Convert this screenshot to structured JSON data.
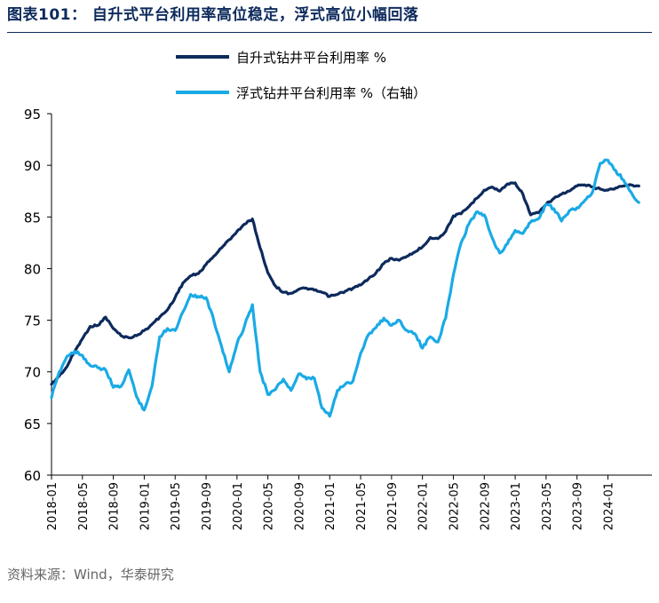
{
  "figure": {
    "title": "图表101：  自升式平台利用率高位稳定，浮式高位小幅回落",
    "source": "资料来源：Wind，华泰研究"
  },
  "chart_data": {
    "type": "line",
    "title": "",
    "xlabel": "",
    "ylabel": "",
    "ylim": [
      60,
      95
    ],
    "yticks": [
      60,
      65,
      70,
      75,
      80,
      85,
      90,
      95
    ],
    "xlim": [
      "2018-01",
      "2024-06"
    ],
    "xticks": [
      "2018-01",
      "2018-05",
      "2018-09",
      "2019-01",
      "2019-05",
      "2019-09",
      "2020-01",
      "2020-05",
      "2020-09",
      "2021-01",
      "2021-05",
      "2021-09",
      "2022-01",
      "2022-05",
      "2022-09",
      "2023-01",
      "2023-05",
      "2023-09",
      "2024-01"
    ],
    "grid": false,
    "legend_placement": "top-center",
    "series": [
      {
        "name": "自升式钻井平台利用率 %",
        "color": "#0d2a5c",
        "points": [
          [
            "2018-01",
            68.8
          ],
          [
            "2018-02",
            69.6
          ],
          [
            "2018-03",
            70.5
          ],
          [
            "2018-04",
            72.0
          ],
          [
            "2018-05",
            73.2
          ],
          [
            "2018-06",
            74.4
          ],
          [
            "2018-07",
            74.5
          ],
          [
            "2018-08",
            75.3
          ],
          [
            "2018-09",
            74.2
          ],
          [
            "2018-10",
            73.5
          ],
          [
            "2018-11",
            73.3
          ],
          [
            "2018-12",
            73.5
          ],
          [
            "2019-01",
            74.0
          ],
          [
            "2019-02",
            74.6
          ],
          [
            "2019-03",
            75.3
          ],
          [
            "2019-04",
            76.0
          ],
          [
            "2019-05",
            77.2
          ],
          [
            "2019-06",
            78.6
          ],
          [
            "2019-07",
            79.3
          ],
          [
            "2019-08",
            79.5
          ],
          [
            "2019-09",
            80.4
          ],
          [
            "2019-10",
            81.2
          ],
          [
            "2019-11",
            82.0
          ],
          [
            "2019-12",
            82.8
          ],
          [
            "2020-01",
            83.6
          ],
          [
            "2020-02",
            84.3
          ],
          [
            "2020-03",
            84.8
          ],
          [
            "2020-04",
            82.0
          ],
          [
            "2020-05",
            79.6
          ],
          [
            "2020-06",
            78.3
          ],
          [
            "2020-07",
            77.7
          ],
          [
            "2020-08",
            77.6
          ],
          [
            "2020-09",
            78.0
          ],
          [
            "2020-10",
            78.1
          ],
          [
            "2020-11",
            77.9
          ],
          [
            "2020-12",
            77.7
          ],
          [
            "2021-01",
            77.3
          ],
          [
            "2021-02",
            77.5
          ],
          [
            "2021-03",
            77.8
          ],
          [
            "2021-04",
            78.1
          ],
          [
            "2021-05",
            78.4
          ],
          [
            "2021-06",
            79.0
          ],
          [
            "2021-07",
            79.6
          ],
          [
            "2021-08",
            80.5
          ],
          [
            "2021-09",
            81.0
          ],
          [
            "2021-10",
            80.8
          ],
          [
            "2021-11",
            81.2
          ],
          [
            "2021-12",
            81.6
          ],
          [
            "2022-01",
            82.1
          ],
          [
            "2022-02",
            83.0
          ],
          [
            "2022-03",
            82.9
          ],
          [
            "2022-04",
            83.6
          ],
          [
            "2022-05",
            85.1
          ],
          [
            "2022-06",
            85.3
          ],
          [
            "2022-07",
            86.0
          ],
          [
            "2022-08",
            86.8
          ],
          [
            "2022-09",
            87.6
          ],
          [
            "2022-10",
            87.9
          ],
          [
            "2022-11",
            87.5
          ],
          [
            "2022-12",
            88.2
          ],
          [
            "2023-01",
            88.3
          ],
          [
            "2023-02",
            87.2
          ],
          [
            "2023-03",
            85.2
          ],
          [
            "2023-04",
            85.4
          ],
          [
            "2023-05",
            86.2
          ],
          [
            "2023-06",
            86.8
          ],
          [
            "2023-07",
            87.2
          ],
          [
            "2023-08",
            87.5
          ],
          [
            "2023-09",
            88.0
          ],
          [
            "2023-10",
            88.1
          ],
          [
            "2023-11",
            87.9
          ],
          [
            "2023-12",
            87.7
          ],
          [
            "2024-01",
            87.6
          ],
          [
            "2024-02",
            87.8
          ],
          [
            "2024-03",
            88.0
          ],
          [
            "2024-04",
            88.1
          ],
          [
            "2024-05",
            88.0
          ]
        ]
      },
      {
        "name": "浮式钻井平台利用率 %（右轴）",
        "color": "#1aaae6",
        "points": [
          [
            "2018-01",
            67.5
          ],
          [
            "2018-02",
            70.0
          ],
          [
            "2018-03",
            71.5
          ],
          [
            "2018-04",
            72.0
          ],
          [
            "2018-05",
            71.6
          ],
          [
            "2018-06",
            70.6
          ],
          [
            "2018-07",
            70.4
          ],
          [
            "2018-08",
            70.2
          ],
          [
            "2018-09",
            68.5
          ],
          [
            "2018-10",
            68.6
          ],
          [
            "2018-11",
            70.2
          ],
          [
            "2018-12",
            67.6
          ],
          [
            "2019-01",
            66.3
          ],
          [
            "2019-02",
            68.6
          ],
          [
            "2019-03",
            73.4
          ],
          [
            "2019-04",
            74.2
          ],
          [
            "2019-05",
            74.0
          ],
          [
            "2019-06",
            75.8
          ],
          [
            "2019-07",
            77.5
          ],
          [
            "2019-08",
            77.3
          ],
          [
            "2019-09",
            77.2
          ],
          [
            "2019-10",
            75.0
          ],
          [
            "2019-11",
            72.5
          ],
          [
            "2019-12",
            70.0
          ],
          [
            "2020-01",
            72.7
          ],
          [
            "2020-02",
            74.5
          ],
          [
            "2020-03",
            76.5
          ],
          [
            "2020-04",
            70.0
          ],
          [
            "2020-05",
            67.8
          ],
          [
            "2020-06",
            68.3
          ],
          [
            "2020-07",
            69.3
          ],
          [
            "2020-08",
            68.2
          ],
          [
            "2020-09",
            69.8
          ],
          [
            "2020-10",
            69.3
          ],
          [
            "2020-11",
            69.4
          ],
          [
            "2020-12",
            66.5
          ],
          [
            "2021-01",
            65.7
          ],
          [
            "2021-02",
            68.2
          ],
          [
            "2021-03",
            68.8
          ],
          [
            "2021-04",
            69.1
          ],
          [
            "2021-05",
            71.8
          ],
          [
            "2021-06",
            73.6
          ],
          [
            "2021-07",
            74.3
          ],
          [
            "2021-08",
            75.2
          ],
          [
            "2021-09",
            74.5
          ],
          [
            "2021-10",
            75.0
          ],
          [
            "2021-11",
            74.0
          ],
          [
            "2021-12",
            73.7
          ],
          [
            "2022-01",
            72.3
          ],
          [
            "2022-02",
            73.4
          ],
          [
            "2022-03",
            72.9
          ],
          [
            "2022-04",
            75.2
          ],
          [
            "2022-05",
            79.4
          ],
          [
            "2022-06",
            82.5
          ],
          [
            "2022-07",
            84.3
          ],
          [
            "2022-08",
            85.5
          ],
          [
            "2022-09",
            85.2
          ],
          [
            "2022-10",
            83.0
          ],
          [
            "2022-11",
            81.5
          ],
          [
            "2022-12",
            82.4
          ],
          [
            "2023-01",
            83.7
          ],
          [
            "2023-02",
            83.4
          ],
          [
            "2023-03",
            84.5
          ],
          [
            "2023-04",
            84.8
          ],
          [
            "2023-05",
            86.2
          ],
          [
            "2023-06",
            85.8
          ],
          [
            "2023-07",
            84.6
          ],
          [
            "2023-08",
            85.6
          ],
          [
            "2023-09",
            85.9
          ],
          [
            "2023-10",
            86.6
          ],
          [
            "2023-11",
            87.4
          ],
          [
            "2023-12",
            90.2
          ],
          [
            "2024-01",
            90.5
          ],
          [
            "2024-02",
            89.5
          ],
          [
            "2024-03",
            88.6
          ],
          [
            "2024-04",
            87.4
          ],
          [
            "2024-05",
            86.4
          ]
        ]
      }
    ]
  }
}
